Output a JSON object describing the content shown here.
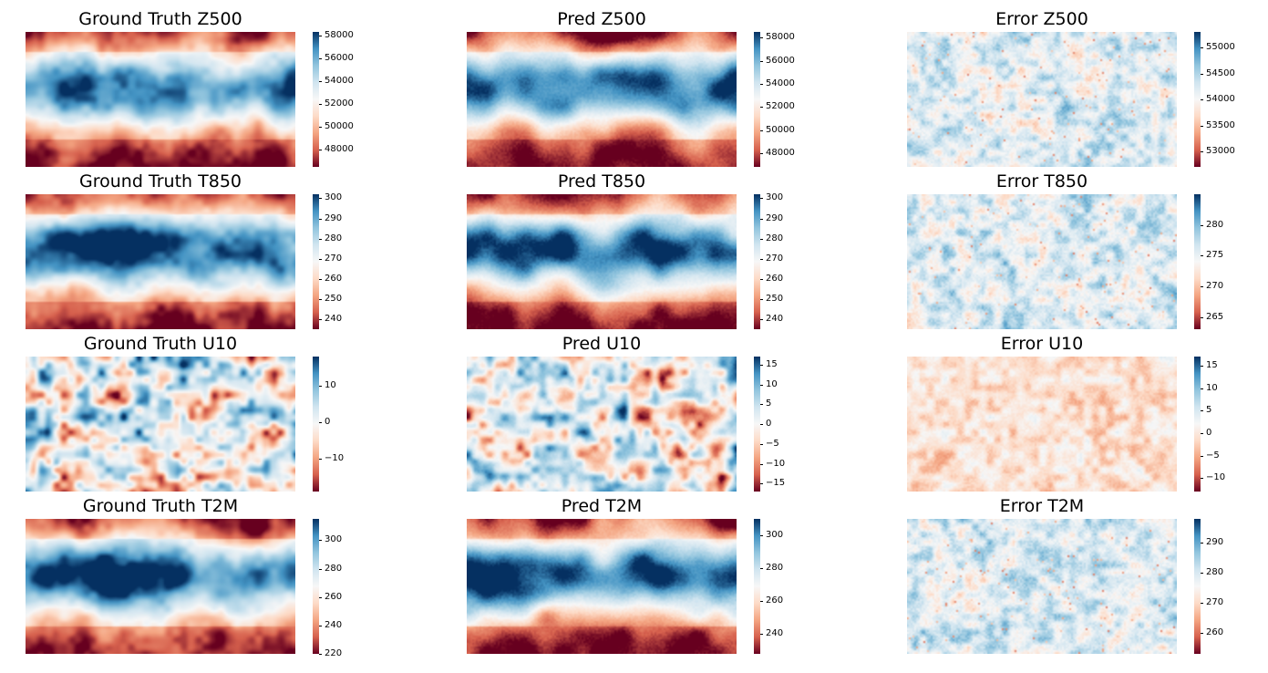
{
  "colors": {
    "dark_red": "#67001f",
    "red": "#d6604d",
    "light_red": "#f4a582",
    "pale_red": "#fddbc7",
    "white": "#f7f7f7",
    "pale_blue": "#d1e5f0",
    "light_blue": "#92c5de",
    "blue": "#4393c3",
    "dark_blue": "#053061"
  },
  "chart_data": [
    {
      "type": "heatmap",
      "title": "Ground Truth Z500",
      "field": "zonal_bands",
      "variable": "Z500",
      "kind": "truth",
      "colorbar": {
        "range": [
          46500,
          58300
        ],
        "ticks": [
          "58000",
          "56000",
          "54000",
          "52000",
          "50000",
          "48000"
        ]
      }
    },
    {
      "type": "heatmap",
      "title": "Pred Z500",
      "field": "zonal_bands",
      "variable": "Z500",
      "kind": "pred",
      "colorbar": {
        "range": [
          46800,
          58500
        ],
        "ticks": [
          "58000",
          "56000",
          "54000",
          "52000",
          "50000",
          "48000"
        ]
      }
    },
    {
      "type": "heatmap",
      "title": "Error Z500",
      "field": "noise",
      "variable": "Z500",
      "kind": "error",
      "colorbar": {
        "range": [
          52700,
          55300
        ],
        "ticks": [
          "55000",
          "54500",
          "54000",
          "53500",
          "53000"
        ]
      }
    },
    {
      "type": "heatmap",
      "title": "Ground Truth T850",
      "field": "zonal_bands",
      "variable": "T850",
      "kind": "truth",
      "colorbar": {
        "range": [
          235,
          302
        ],
        "ticks": [
          "300",
          "290",
          "280",
          "270",
          "260",
          "250",
          "240"
        ]
      }
    },
    {
      "type": "heatmap",
      "title": "Pred T850",
      "field": "zonal_bands",
      "variable": "T850",
      "kind": "pred",
      "colorbar": {
        "range": [
          235,
          302
        ],
        "ticks": [
          "300",
          "290",
          "280",
          "270",
          "260",
          "250",
          "240"
        ]
      }
    },
    {
      "type": "heatmap",
      "title": "Error T850",
      "field": "noise",
      "variable": "T850",
      "kind": "error",
      "colorbar": {
        "range": [
          263,
          285
        ],
        "ticks": [
          "280",
          "275",
          "270",
          "265"
        ]
      }
    },
    {
      "type": "heatmap",
      "title": "Ground Truth U10",
      "field": "eddies",
      "variable": "U10",
      "kind": "truth",
      "colorbar": {
        "range": [
          -19,
          18
        ],
        "ticks": [
          "10",
          "0",
          "−10"
        ]
      }
    },
    {
      "type": "heatmap",
      "title": "Pred U10",
      "field": "eddies",
      "variable": "U10",
      "kind": "pred",
      "colorbar": {
        "range": [
          -17,
          17
        ],
        "ticks": [
          "15",
          "10",
          "5",
          "0",
          "−5",
          "−10",
          "−15"
        ]
      }
    },
    {
      "type": "heatmap",
      "title": "Error U10",
      "field": "noise_red",
      "variable": "U10",
      "kind": "error",
      "colorbar": {
        "range": [
          -13,
          17
        ],
        "ticks": [
          "15",
          "10",
          "5",
          "0",
          "−5",
          "−10"
        ]
      }
    },
    {
      "type": "heatmap",
      "title": "Ground Truth T2M",
      "field": "zonal_bands",
      "variable": "T2M",
      "kind": "truth",
      "colorbar": {
        "range": [
          220,
          315
        ],
        "ticks": [
          "300",
          "280",
          "260",
          "240",
          "220"
        ]
      }
    },
    {
      "type": "heatmap",
      "title": "Pred T2M",
      "field": "zonal_bands",
      "variable": "T2M",
      "kind": "pred",
      "colorbar": {
        "range": [
          228,
          310
        ],
        "ticks": [
          "300",
          "280",
          "260",
          "240"
        ]
      }
    },
    {
      "type": "heatmap",
      "title": "Error T2M",
      "field": "noise",
      "variable": "T2M",
      "kind": "error",
      "colorbar": {
        "range": [
          253,
          298
        ],
        "ticks": [
          "290",
          "280",
          "270",
          "260"
        ]
      }
    }
  ]
}
